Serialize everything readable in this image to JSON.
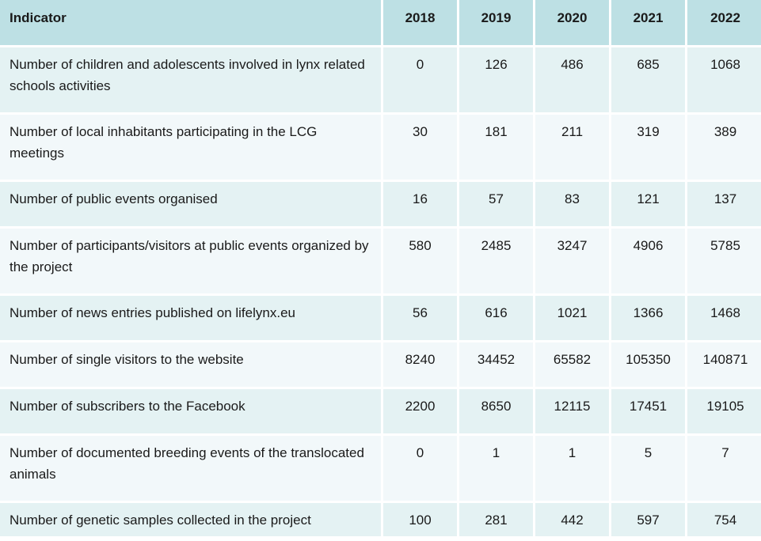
{
  "table": {
    "headers": {
      "indicator": "Indicator",
      "years": [
        "2018",
        "2019",
        "2020",
        "2021",
        "2022"
      ]
    },
    "rows": [
      {
        "indicator": "Number of children and adolescents involved in lynx related schools activities",
        "values": [
          "0",
          "126",
          "486",
          "685",
          "1068"
        ]
      },
      {
        "indicator": "Number of local inhabitants participating in the LCG meetings",
        "values": [
          "30",
          "181",
          "211",
          "319",
          "389"
        ]
      },
      {
        "indicator": "Number of public events organised",
        "values": [
          "16",
          "57",
          "83",
          "121",
          "137"
        ]
      },
      {
        "indicator": "Number of participants/visitors at public events organized by the project",
        "values": [
          "580",
          "2485",
          "3247",
          "4906",
          "5785"
        ]
      },
      {
        "indicator": "Number of news entries published on lifelynx.eu",
        "values": [
          "56",
          "616",
          "1021",
          "1366",
          "1468"
        ]
      },
      {
        "indicator": "Number of single visitors to the website",
        "values": [
          "8240",
          "34452",
          "65582",
          "105350",
          "140871"
        ]
      },
      {
        "indicator": "Number of subscribers to the Facebook",
        "values": [
          "2200",
          "8650",
          "12115",
          "17451",
          "19105"
        ]
      },
      {
        "indicator": "Number of documented breeding events of the translocated animals",
        "values": [
          "0",
          "1",
          "1",
          "5",
          "7"
        ]
      },
      {
        "indicator": "Number of genetic samples collected in the project",
        "values": [
          "100",
          "281",
          "442",
          "597",
          "754"
        ]
      }
    ]
  },
  "colors": {
    "header_bg": "#bde0e4",
    "row_odd_bg": "#e4f2f3",
    "row_even_bg": "#f2f8fa"
  }
}
